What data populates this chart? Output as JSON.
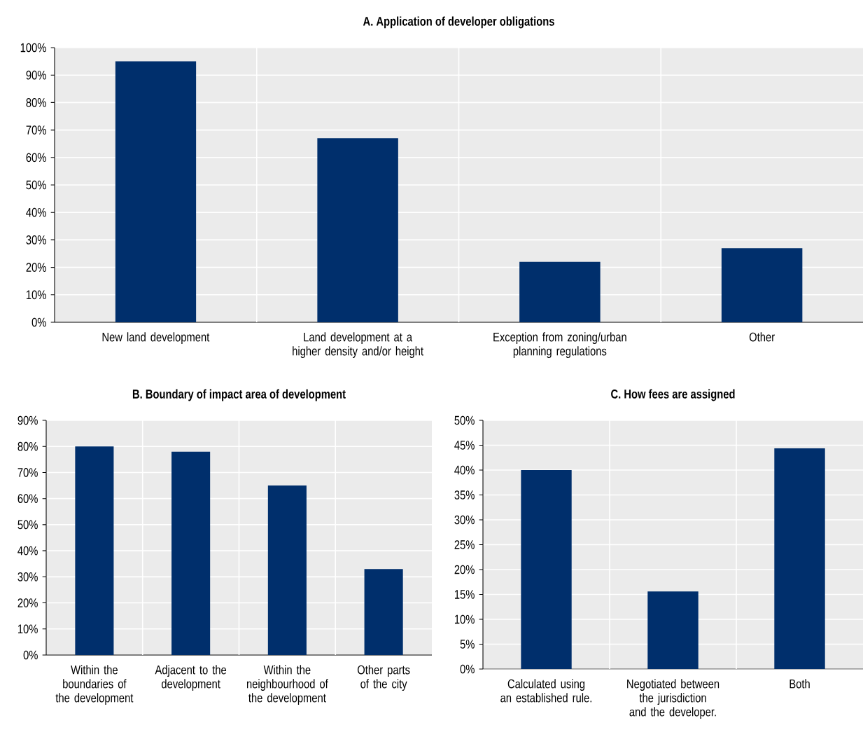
{
  "chart_data": [
    {
      "type": "bar",
      "title": "A. Application of developer obligations",
      "categories": [
        "New land development",
        "Land development at a higher density and/or height",
        "Exception from zoning/urban planning regulations",
        "Other"
      ],
      "values": [
        95,
        67,
        22,
        27
      ],
      "color": "#002f6c",
      "ylim": [
        0,
        100
      ],
      "yticks": [
        {
          "value": 0,
          "label": "0%"
        },
        {
          "value": 10,
          "label": "10%"
        },
        {
          "value": 20,
          "label": "20%"
        },
        {
          "value": 30,
          "label": "30%"
        },
        {
          "value": 40,
          "label": "40%"
        },
        {
          "value": 50,
          "label": "50%"
        },
        {
          "value": 60,
          "label": "60%"
        },
        {
          "value": 70,
          "label": "70%"
        },
        {
          "value": 80,
          "label": "80%"
        },
        {
          "value": 90,
          "label": "90%"
        },
        {
          "value": 100,
          "label": "100%"
        }
      ],
      "grid": true
    },
    {
      "type": "bar",
      "title": "B. Boundary of impact  area of development",
      "categories": [
        "Within the boundaries of the development",
        "Adjacent to the development",
        "Within the neighbourhood of the development",
        "Other parts of the city"
      ],
      "values": [
        80,
        78,
        65,
        33
      ],
      "color": "#002f6c",
      "ylim": [
        0,
        90
      ],
      "yticks": [
        {
          "value": 0,
          "label": "0%"
        },
        {
          "value": 10,
          "label": "10%"
        },
        {
          "value": 20,
          "label": "20%"
        },
        {
          "value": 30,
          "label": "30%"
        },
        {
          "value": 40,
          "label": "40%"
        },
        {
          "value": 50,
          "label": "50%"
        },
        {
          "value": 60,
          "label": "60%"
        },
        {
          "value": 70,
          "label": "70%"
        },
        {
          "value": 80,
          "label": "80%"
        },
        {
          "value": 90,
          "label": "90%"
        }
      ],
      "grid": true
    },
    {
      "type": "bar",
      "title": "C. How fees are assigned",
      "categories": [
        "Calculated using an established rule.",
        "Negotiated between the jurisdiction and the developer.",
        "Both"
      ],
      "values": [
        40,
        15.6,
        44.4
      ],
      "color": "#002f6c",
      "ylim": [
        0,
        50
      ],
      "yticks": [
        {
          "value": 0,
          "label": "0%"
        },
        {
          "value": 5,
          "label": "5%"
        },
        {
          "value": 10,
          "label": "10%"
        },
        {
          "value": 15,
          "label": "15%"
        },
        {
          "value": 20,
          "label": "20%"
        },
        {
          "value": 25,
          "label": "25%"
        },
        {
          "value": 30,
          "label": "30%"
        },
        {
          "value": 35,
          "label": "35%"
        },
        {
          "value": 40,
          "label": "40%"
        },
        {
          "value": 45,
          "label": "45%"
        },
        {
          "value": 50,
          "label": "50%"
        }
      ],
      "grid": true
    }
  ]
}
